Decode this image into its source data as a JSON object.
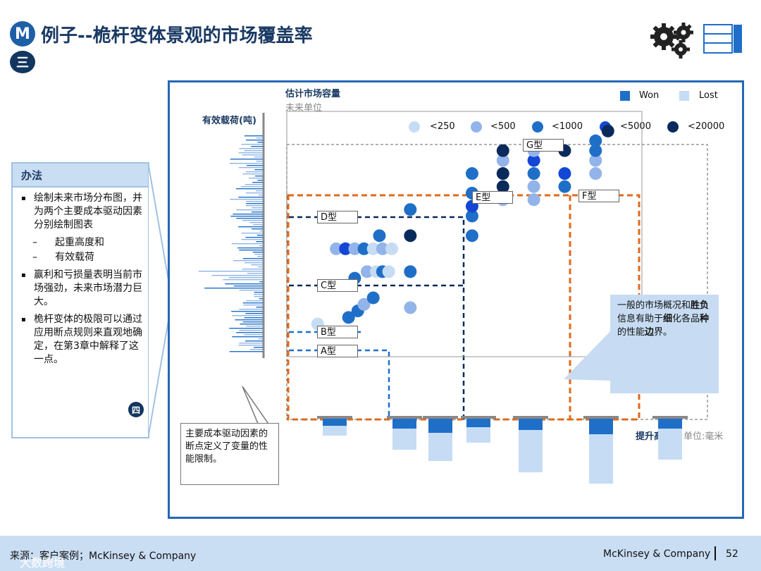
{
  "header": {
    "badge": "M",
    "badge2": "三",
    "title": "例子--桅杆变体景观的市场覆盖率"
  },
  "icons": {
    "gears": "gears-icon",
    "table": "table-icon"
  },
  "method": {
    "title": "办法",
    "bullets": [
      "绘制未来市场分布图，并为两个主要成本驱动因素分别绘制图表",
      "赢利和亏损量表明当前市场强劲，未来市场潜力巨大。",
      "桅杆变体的极限可以通过应用断点规则来直观地确定，在第3章中解释了这一点。"
    ],
    "sub": [
      "起重高度和",
      "有效载荷"
    ],
    "badge": "四"
  },
  "chart_data": {
    "type": "scatter",
    "title": "估计市场容量",
    "subtitle": "未来单位",
    "ylabel": "有效载荷(吨)",
    "xlabel": "提升高度",
    "xunit": "单位:毫米",
    "legend_size": [
      "<250",
      "<500",
      "<1000",
      "<5000",
      "<20000"
    ],
    "legend_size_colors": [
      "#c6dcf5",
      "#93b4ea",
      "#1f6fc8",
      "#1447d6",
      "#0b2a5c"
    ],
    "legend_winloss": [
      "Won",
      "Lost"
    ],
    "winloss_colors": {
      "won": "#1f6fc8",
      "lost": "#c6dcf5"
    },
    "variants": [
      "A型",
      "B型",
      "C型",
      "D型",
      "E型",
      "F型",
      "G型"
    ],
    "points": [
      {
        "x": 1,
        "y": 3,
        "s": 1
      },
      {
        "x": 2,
        "y": 3.2,
        "s": 3
      },
      {
        "x": 2.3,
        "y": 3.4,
        "s": 3
      },
      {
        "x": 2.5,
        "y": 3.6,
        "s": 2
      },
      {
        "x": 2.8,
        "y": 3.8,
        "s": 3
      },
      {
        "x": 4,
        "y": 3.5,
        "s": 2
      },
      {
        "x": 2.2,
        "y": 4.4,
        "s": 3
      },
      {
        "x": 2.6,
        "y": 4.6,
        "s": 2
      },
      {
        "x": 2.9,
        "y": 4.6,
        "s": 1
      },
      {
        "x": 3.1,
        "y": 4.6,
        "s": 3
      },
      {
        "x": 3.3,
        "y": 4.6,
        "s": 1
      },
      {
        "x": 4,
        "y": 4.6,
        "s": 3
      },
      {
        "x": 1.6,
        "y": 5.3,
        "s": 2
      },
      {
        "x": 1.9,
        "y": 5.3,
        "s": 4
      },
      {
        "x": 2.2,
        "y": 5.3,
        "s": 2
      },
      {
        "x": 2.5,
        "y": 5.3,
        "s": 3
      },
      {
        "x": 2.8,
        "y": 5.3,
        "s": 1
      },
      {
        "x": 3.1,
        "y": 5.3,
        "s": 2
      },
      {
        "x": 3.4,
        "y": 5.3,
        "s": 1
      },
      {
        "x": 3,
        "y": 5.7,
        "s": 3
      },
      {
        "x": 4,
        "y": 5.7,
        "s": 5
      },
      {
        "x": 4,
        "y": 6.5,
        "s": 3
      },
      {
        "x": 6,
        "y": 5.7,
        "s": 3
      },
      {
        "x": 6,
        "y": 6.3,
        "s": 3
      },
      {
        "x": 6,
        "y": 6.6,
        "s": 4
      },
      {
        "x": 6,
        "y": 7,
        "s": 3
      },
      {
        "x": 6,
        "y": 7.6,
        "s": 3
      },
      {
        "x": 7,
        "y": 6.8,
        "s": 2
      },
      {
        "x": 7,
        "y": 7.2,
        "s": 5
      },
      {
        "x": 7,
        "y": 7.6,
        "s": 5
      },
      {
        "x": 7,
        "y": 8,
        "s": 2
      },
      {
        "x": 7,
        "y": 8.3,
        "s": 5
      },
      {
        "x": 8,
        "y": 6.8,
        "s": 2
      },
      {
        "x": 8,
        "y": 7.2,
        "s": 2
      },
      {
        "x": 8,
        "y": 7.6,
        "s": 3
      },
      {
        "x": 8,
        "y": 8,
        "s": 4
      },
      {
        "x": 8,
        "y": 8.3,
        "s": 2
      },
      {
        "x": 9,
        "y": 7.2,
        "s": 3
      },
      {
        "x": 9,
        "y": 7.6,
        "s": 4
      },
      {
        "x": 9,
        "y": 8.3,
        "s": 5
      },
      {
        "x": 10,
        "y": 7.6,
        "s": 2
      },
      {
        "x": 10,
        "y": 8,
        "s": 2
      },
      {
        "x": 10,
        "y": 8.3,
        "s": 3
      },
      {
        "x": 10,
        "y": 8.6,
        "s": 3
      },
      {
        "x": 10.4,
        "y": 8.9,
        "s": 5
      }
    ]
  },
  "callouts": {
    "right_pre": "一般的市场概况和",
    "right_b1": "胜负",
    "right_mid": "信息有助于",
    "right_b2": "细",
    "right_line3a": "化各品",
    "right_b3": "种",
    "right_line3b": "的性能",
    "right_b4": "边",
    "right_line4": "界。",
    "left": "主要成本驱动因素的断点定义了变量的性能限制。"
  },
  "footer": {
    "left": "来源：客户案例；McKinsey & Company",
    "right": "McKinsey & Company",
    "page": "52",
    "watermark": "大数跨境"
  }
}
